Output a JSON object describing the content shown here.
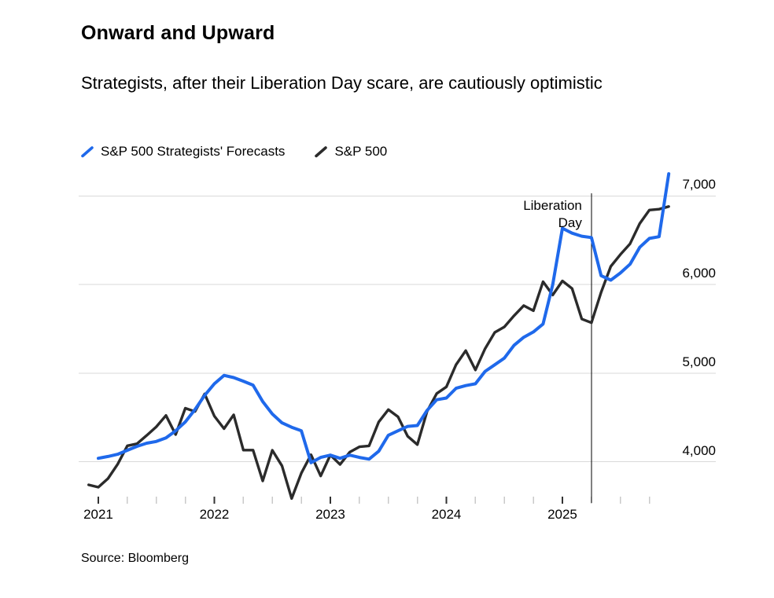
{
  "header": {
    "title": "Onward and Upward",
    "subtitle": "Strategists, after their Liberation Day scare, are cautiously optimistic"
  },
  "legend": [
    {
      "label": "S&P 500 Strategists' Forecasts",
      "color": "#1f69eb"
    },
    {
      "label": "S&P 500",
      "color": "#2b2b2b"
    }
  ],
  "chart_data": {
    "type": "line",
    "title": "Onward and Upward",
    "subtitle": "Strategists, after their Liberation Day scare, are cautiously optimistic",
    "x_axis": {
      "unit": "month",
      "start": "2020-12",
      "end": "2025-12",
      "year_tick_labels": [
        "2021",
        "2022",
        "2023",
        "2024",
        "2025"
      ],
      "minor_tick_interval_months": 3
    },
    "y_axis": {
      "ticks": [
        4000,
        5000,
        6000,
        7000
      ],
      "tick_labels": [
        "4,000",
        "5,000",
        "6,000",
        "7,000"
      ],
      "range_shown": [
        3550,
        7300
      ],
      "grid": true,
      "labels_position": "right"
    },
    "annotation": {
      "label": "Liberation\nDay",
      "marker": "vertical-line",
      "date": "2025-04",
      "month_index": 52
    },
    "legend_position": "top-left",
    "series": [
      {
        "name": "S&P 500",
        "color": "#2b2b2b",
        "stroke_width": 3.4,
        "start_month_index": 0,
        "values": [
          3740,
          3714,
          3811,
          3973,
          4181,
          4204,
          4298,
          4395,
          4523,
          4308,
          4605,
          4567,
          4766,
          4516,
          4374,
          4530,
          4132,
          4132,
          3785,
          4130,
          3955,
          3586,
          3872,
          4080,
          3840,
          4077,
          3970,
          4109,
          4169,
          4180,
          4450,
          4589,
          4508,
          4288,
          4194,
          4568,
          4770,
          4846,
          5096,
          5254,
          5036,
          5277,
          5460,
          5522,
          5648,
          5762,
          5705,
          6032,
          5882,
          6041,
          5955,
          5612,
          5569,
          5912,
          6205,
          6339,
          6460,
          6688,
          6840,
          6850,
          6880
        ]
      },
      {
        "name": "S&P 500 Strategists' Forecasts",
        "color": "#1f69eb",
        "stroke_width": 4,
        "start_month_index": 1,
        "values": [
          4040,
          4060,
          4085,
          4130,
          4175,
          4210,
          4230,
          4270,
          4350,
          4450,
          4590,
          4750,
          4880,
          4975,
          4950,
          4910,
          4865,
          4680,
          4540,
          4440,
          4390,
          4350,
          3990,
          4050,
          4075,
          4040,
          4075,
          4050,
          4030,
          4120,
          4300,
          4350,
          4400,
          4410,
          4580,
          4700,
          4720,
          4830,
          4860,
          4880,
          5020,
          5095,
          5170,
          5315,
          5405,
          5465,
          5555,
          6000,
          6635,
          6580,
          6545,
          6530,
          6100,
          6050,
          6130,
          6230,
          6420,
          6520,
          6540,
          7250
        ]
      }
    ]
  },
  "source": {
    "text": "Source: Bloomberg"
  }
}
